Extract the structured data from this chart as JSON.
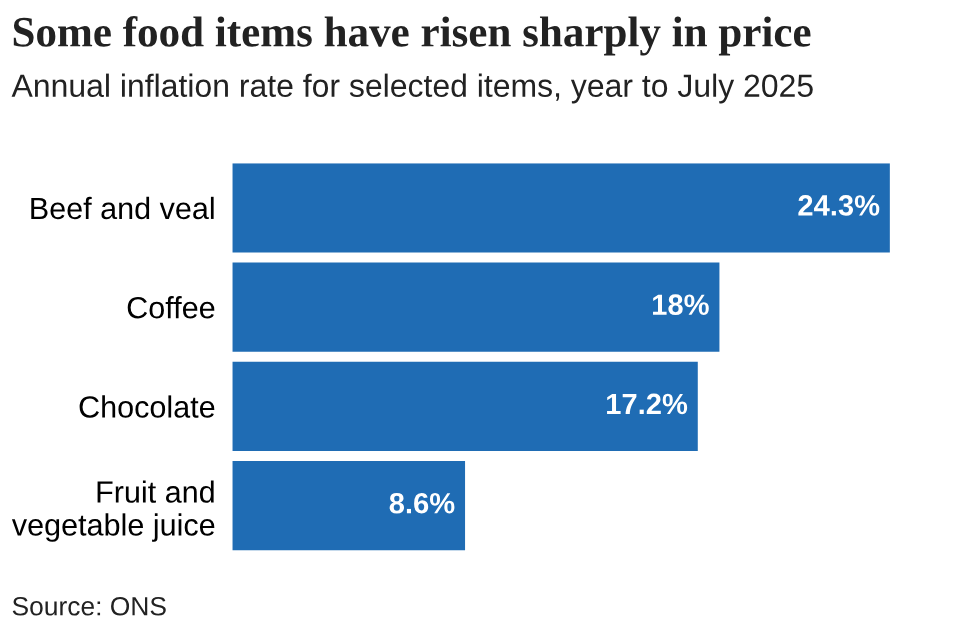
{
  "chart_data": {
    "type": "bar",
    "orientation": "horizontal",
    "title": "Some food items have risen sharply in price",
    "subtitle": "Annual inflation rate for selected items, year to July 2025",
    "categories": [
      "Beef and veal",
      "Coffee",
      "Chocolate",
      "Fruit and\nvegetable juice"
    ],
    "values": [
      24.3,
      18,
      17.2,
      8.6
    ],
    "color": "#1f6cb4",
    "value_labels": [
      "24.3%",
      "18%",
      "17.2%",
      "8.6%"
    ],
    "annotations": [
      "Source: ONS"
    ],
    "grid": false,
    "legend": false,
    "tick_labels": "y"
  }
}
